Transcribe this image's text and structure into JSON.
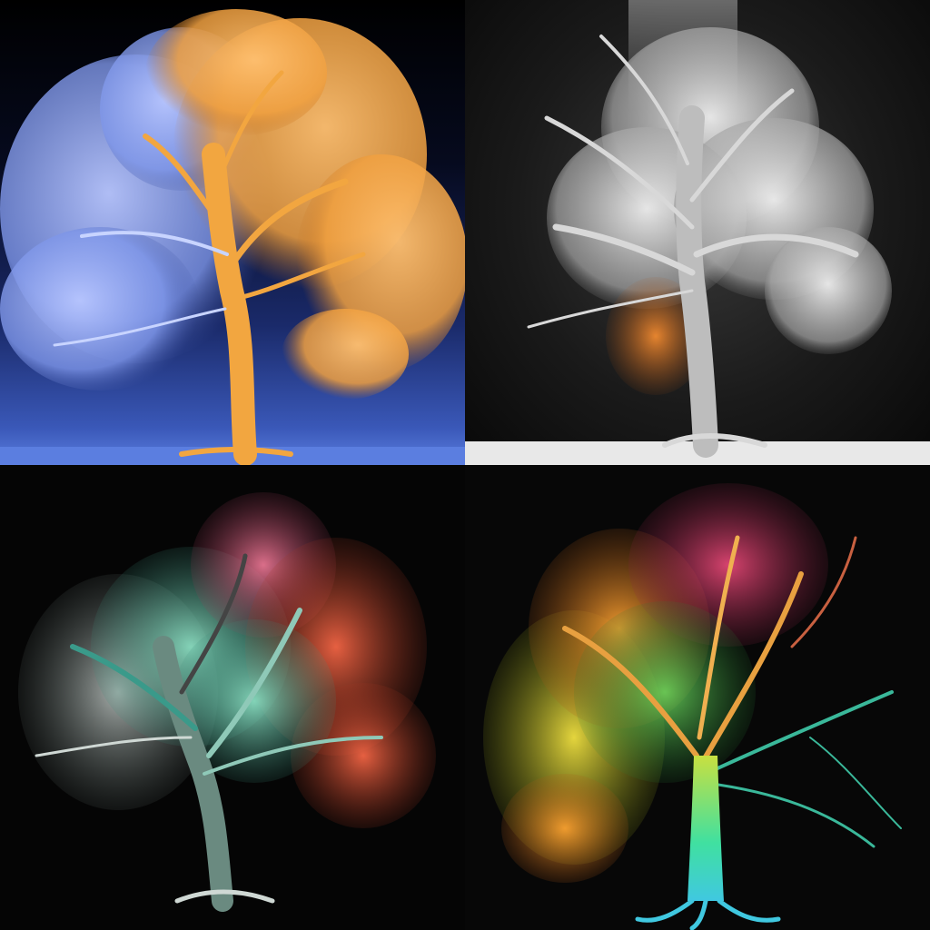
{
  "panels": [
    {
      "id": "tree-blue-orange",
      "palette": {
        "bg": "#0a1230",
        "ground": "#5b7ee0",
        "left_foliage": "#8aa2f0",
        "right_foliage": "#f2a640",
        "trunk": "#f2a640"
      }
    },
    {
      "id": "tree-monochrome",
      "palette": {
        "bg": "#1a1a1a",
        "ground": "#e8e8e8",
        "foliage": "#d9d9d9",
        "trunk": "#cfcfcf",
        "accent": "#e07a20"
      }
    },
    {
      "id": "tree-teal-coral",
      "palette": {
        "bg": "#050505",
        "left_foliage": "#6fd6b8",
        "right_foliage": "#e8583a",
        "top_foliage": "#f06a8a",
        "trunk": "#8fc9b8"
      }
    },
    {
      "id": "tree-rainbow",
      "palette": {
        "bg": "#070707",
        "left_foliage": "#e8d020",
        "mid_foliage": "#f0a030",
        "top_foliage": "#e83a6a",
        "right_branches": "#3ab89a",
        "trunk": "#4ad8c8"
      }
    }
  ]
}
